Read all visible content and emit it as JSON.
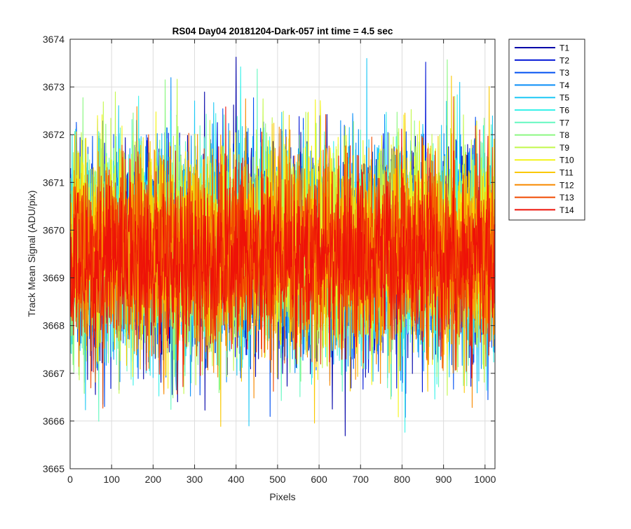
{
  "chart_data": {
    "type": "line",
    "title": "RS04 Day04 20181204-Dark-057 int time = 4.5 sec",
    "xlabel": "Pixels",
    "ylabel": "Track Mean Signal (ADU/pix)",
    "xlim": [
      0,
      1024
    ],
    "ylim": [
      3665,
      3674
    ],
    "xticks": [
      0,
      100,
      200,
      300,
      400,
      500,
      600,
      700,
      800,
      900,
      1000
    ],
    "yticks": [
      3665,
      3666,
      3667,
      3668,
      3669,
      3670,
      3671,
      3672,
      3673,
      3674
    ],
    "grid": true,
    "legend_position": "outside top-right",
    "n_points": 1024,
    "series": [
      {
        "name": "T1",
        "color": "#0000a8",
        "mean": 3669.5,
        "std": 1.1
      },
      {
        "name": "T2",
        "color": "#0014d6",
        "mean": 3669.5,
        "std": 1.1
      },
      {
        "name": "T3",
        "color": "#0050f2",
        "mean": 3669.5,
        "std": 1.1
      },
      {
        "name": "T4",
        "color": "#0a8ef8",
        "mean": 3669.5,
        "std": 1.1
      },
      {
        "name": "T5",
        "color": "#1ec8f5",
        "mean": 3669.6,
        "std": 1.1
      },
      {
        "name": "T6",
        "color": "#38f2ea",
        "mean": 3669.6,
        "std": 1.1
      },
      {
        "name": "T7",
        "color": "#64f8c0",
        "mean": 3669.6,
        "std": 1.1
      },
      {
        "name": "T8",
        "color": "#8cf882",
        "mean": 3669.6,
        "std": 1.1
      },
      {
        "name": "T9",
        "color": "#c2f84a",
        "mean": 3669.7,
        "std": 1.1
      },
      {
        "name": "T10",
        "color": "#f4f418",
        "mean": 3669.8,
        "std": 1.1
      },
      {
        "name": "T11",
        "color": "#fac800",
        "mean": 3669.6,
        "std": 1.1
      },
      {
        "name": "T12",
        "color": "#f88a00",
        "mean": 3669.5,
        "std": 1.05
      },
      {
        "name": "T13",
        "color": "#f04a00",
        "mean": 3669.5,
        "std": 1.0
      },
      {
        "name": "T14",
        "color": "#ee1208",
        "mean": 3669.4,
        "std": 0.95
      }
    ]
  }
}
